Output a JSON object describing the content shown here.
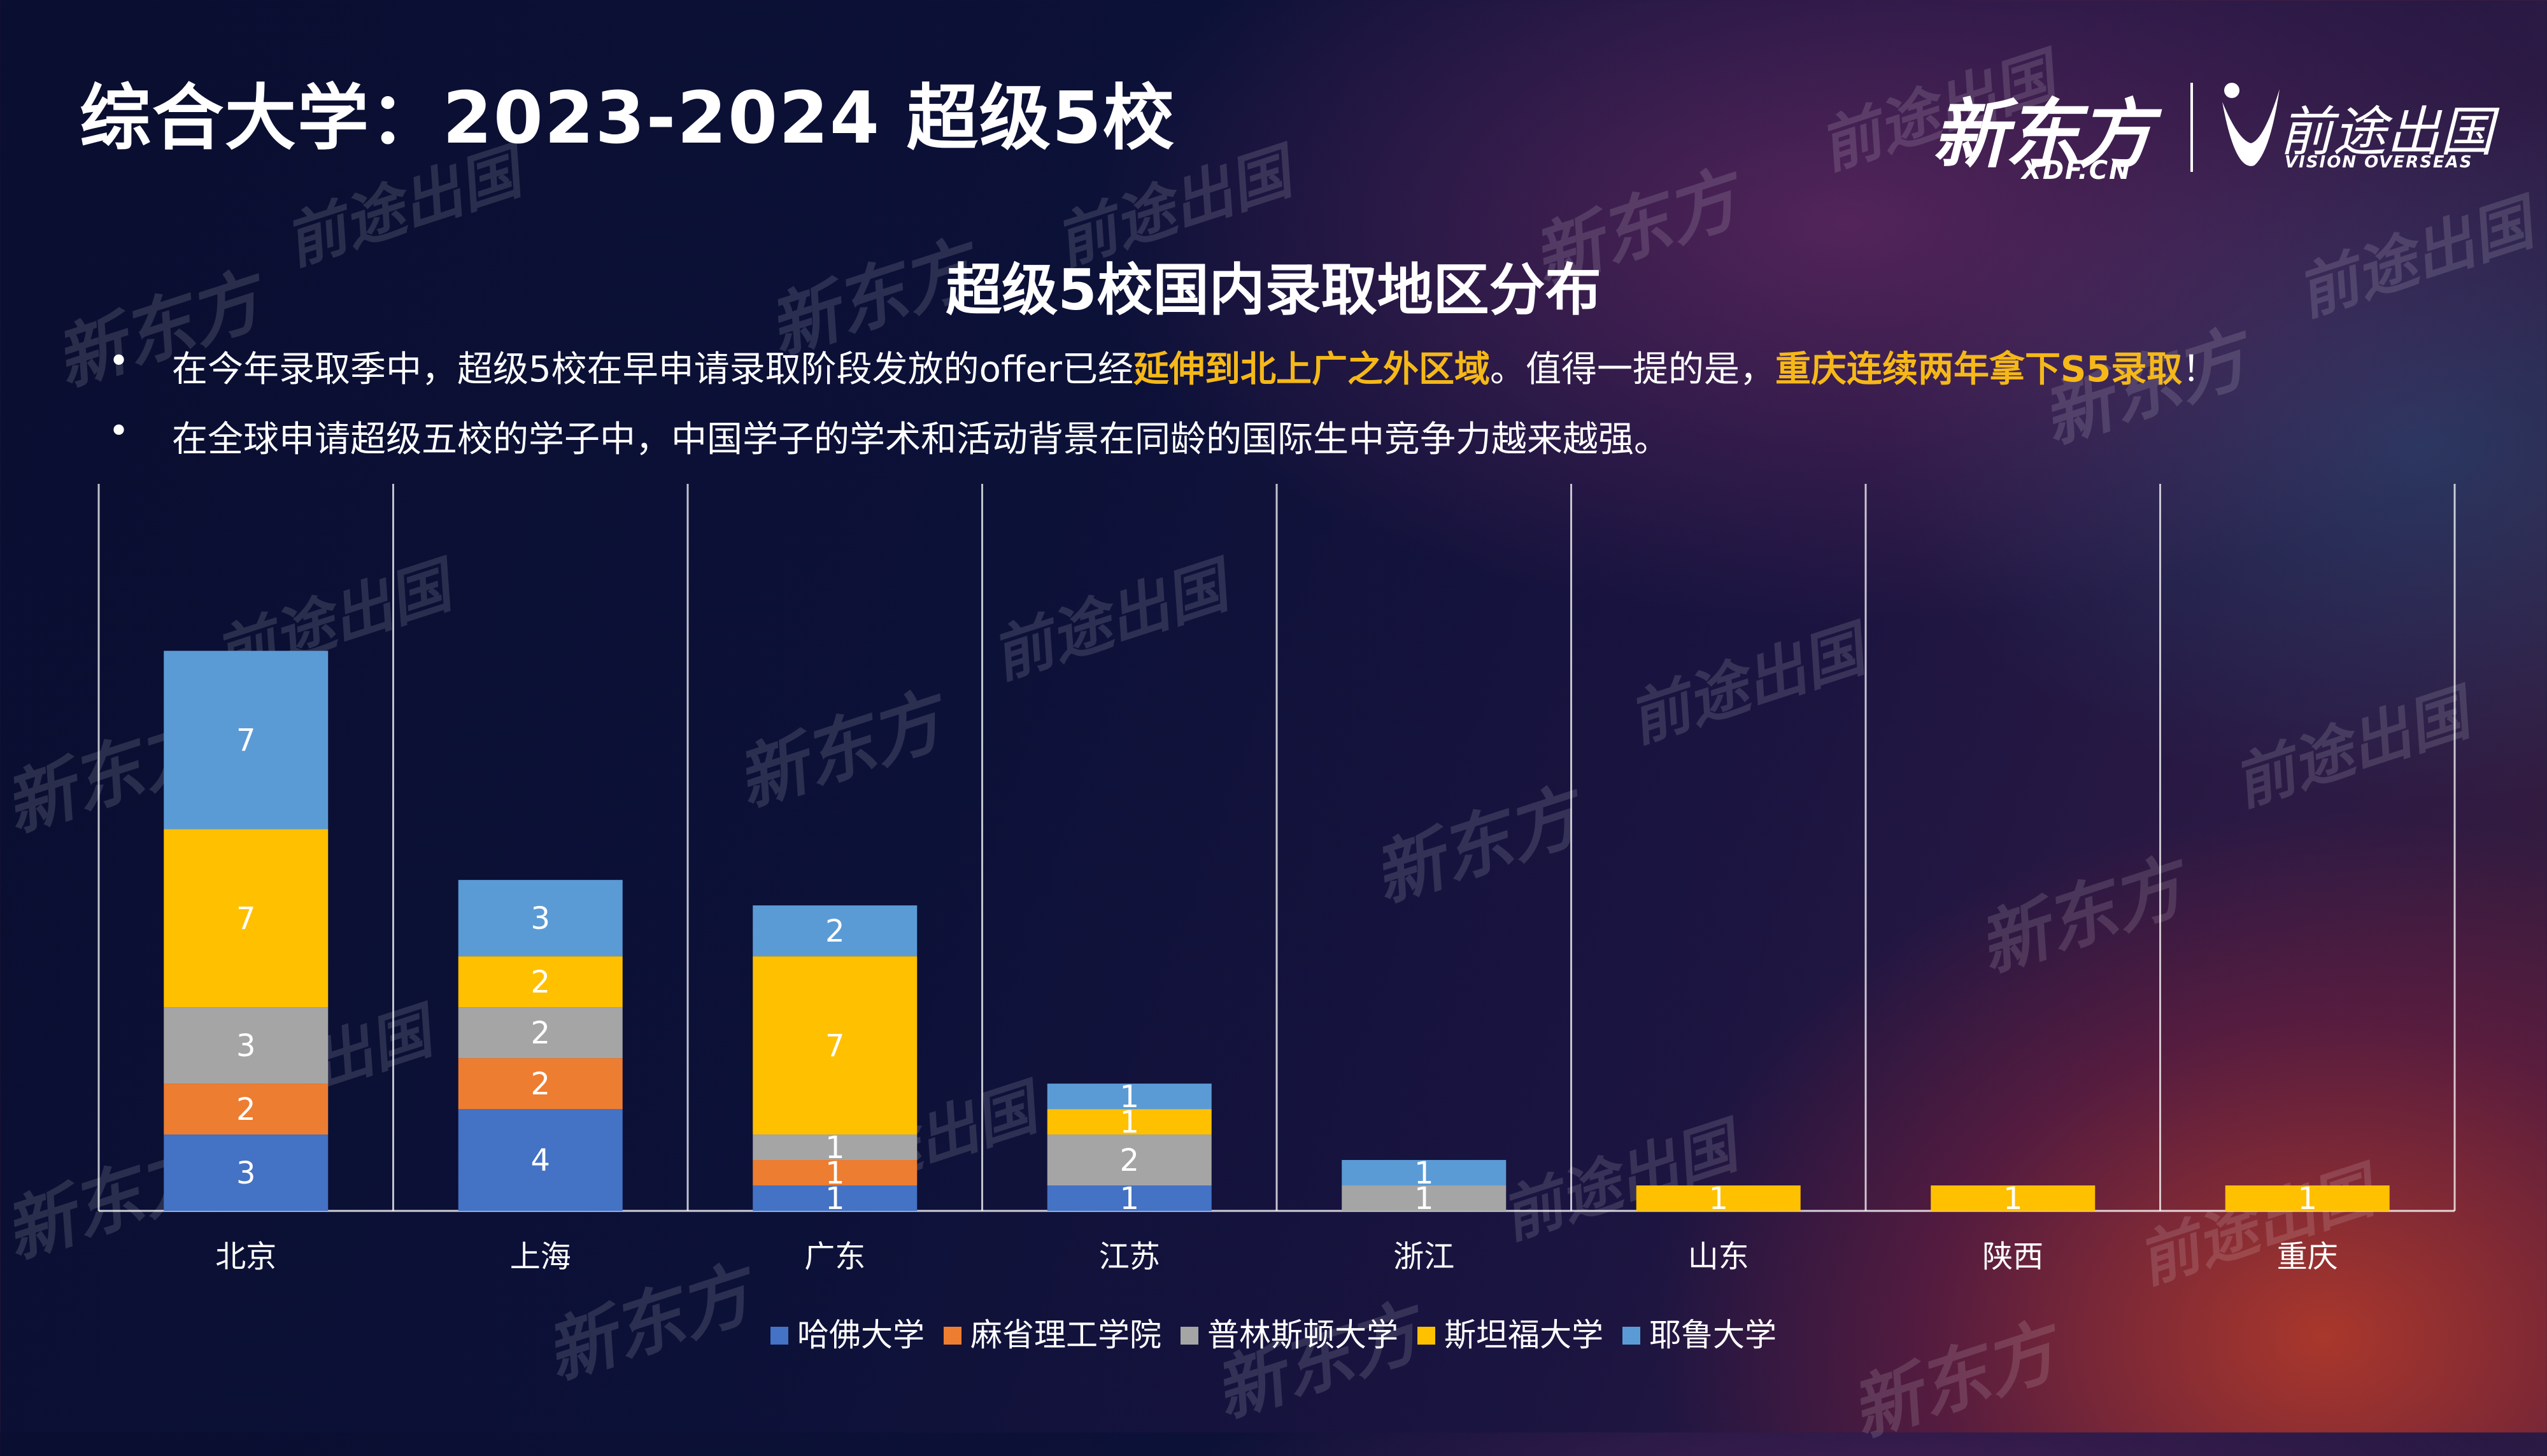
{
  "page": {
    "title": "综合大学：2023-2024 超级5校",
    "bullets": [
      {
        "dot": "•",
        "segments": [
          {
            "text": "在今年录取季中，超级5校在早申请录取阶段发放的offer已经",
            "highlight": false
          },
          {
            "text": "延伸到北上广之外区域",
            "highlight": true
          },
          {
            "text": "。值得一提的是，",
            "highlight": false
          },
          {
            "text": "重庆连续两年拿下S5录取",
            "highlight": true
          },
          {
            "text": "！",
            "highlight": false
          }
        ]
      },
      {
        "dot": "•",
        "segments": [
          {
            "text": "在全球申请超级五校的学子中，中国学子的学术和活动背景在同龄的国际生中竞争力越来越强。",
            "highlight": false
          }
        ]
      }
    ]
  },
  "logos": {
    "xdf_cn": "新东方",
    "xdf_en": "XDF.CN",
    "vision_cn": "前途出国",
    "vision_en": "VISION OVERSEAS"
  },
  "watermarks": {
    "xdf": "新东方",
    "vision": "前途出国"
  },
  "chart_data": {
    "type": "bar",
    "stacked": true,
    "title": "超级5校国内录取地区分布",
    "xlabel": "",
    "ylabel": "",
    "ylim": [
      0,
      23
    ],
    "categories": [
      "北京",
      "上海",
      "广东",
      "江苏",
      "浙江",
      "山东",
      "陕西",
      "重庆"
    ],
    "series": [
      {
        "name": "哈佛大学",
        "color": "#4472c4",
        "values": [
          3,
          4,
          1,
          1,
          0,
          0,
          0,
          0
        ]
      },
      {
        "name": "麻省理工学院",
        "color": "#ed7d31",
        "values": [
          2,
          2,
          1,
          0,
          0,
          0,
          0,
          0
        ]
      },
      {
        "name": "普林斯顿大学",
        "color": "#a5a5a5",
        "values": [
          3,
          2,
          1,
          2,
          1,
          0,
          0,
          0
        ]
      },
      {
        "name": "斯坦福大学",
        "color": "#ffc000",
        "values": [
          7,
          2,
          7,
          1,
          0,
          1,
          1,
          1
        ]
      },
      {
        "name": "耶鲁大学",
        "color": "#5b9bd5",
        "values": [
          7,
          3,
          2,
          1,
          1,
          0,
          0,
          0
        ]
      }
    ],
    "legend_position": "bottom",
    "grid": "vertical category separators"
  }
}
